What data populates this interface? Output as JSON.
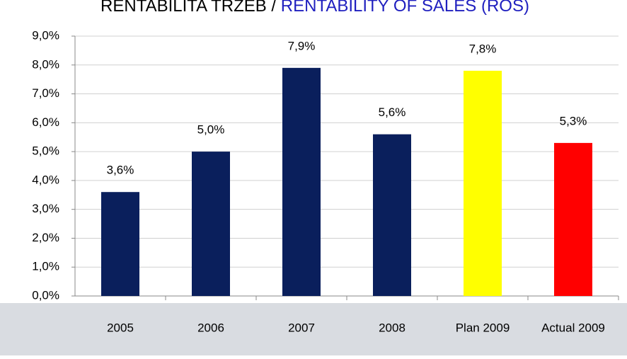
{
  "chart_data": {
    "type": "bar",
    "title_parts": [
      "RENTABILITA TRŽEB /",
      "RENTABILITY OF SALES (ROS)"
    ],
    "title_colors": [
      "#000000",
      "#1f1fbf"
    ],
    "categories": [
      "2005",
      "2006",
      "2007",
      "2008",
      "Plan 2009",
      "Actual 2009"
    ],
    "values": [
      3.6,
      5.0,
      7.9,
      5.6,
      7.8,
      5.3
    ],
    "value_labels": [
      "3,6%",
      "5,0%",
      "7,9%",
      "5,6%",
      "7,8%",
      "5,3%"
    ],
    "colors": [
      "#0a1f5c",
      "#0a1f5c",
      "#0a1f5c",
      "#0a1f5c",
      "#ffff00",
      "#ff0000"
    ],
    "ylim": [
      0,
      9
    ],
    "yticks": [
      {
        "value": 0,
        "label": "0,0%"
      },
      {
        "value": 1,
        "label": "1,0%"
      },
      {
        "value": 2,
        "label": "2,0%"
      },
      {
        "value": 3,
        "label": "3,0%"
      },
      {
        "value": 4,
        "label": "4,0%"
      },
      {
        "value": 5,
        "label": "5,0%"
      },
      {
        "value": 6,
        "label": "6,0%"
      },
      {
        "value": 7,
        "label": "7,0%"
      },
      {
        "value": 8,
        "label": "8,0%"
      },
      {
        "value": 9,
        "label": "9,0%"
      }
    ],
    "grid": true
  }
}
